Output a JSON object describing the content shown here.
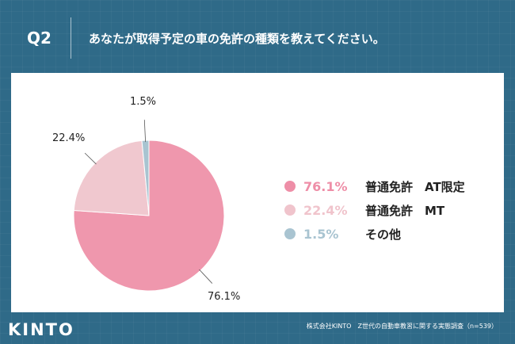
{
  "header": {
    "q_label": "Q2",
    "question": "あなたが取得予定の車の免許の種類を教えてください。"
  },
  "chart_data": {
    "type": "pie",
    "title": "",
    "slices": [
      {
        "label": "普通免許 AT限定",
        "value": 76.1,
        "pct_label": "76.1%",
        "name_line": "普通免許　AT限定",
        "color": "#ef97ad",
        "legend_color": "#ee8ea7"
      },
      {
        "label": "普通免許 MT",
        "value": 22.4,
        "pct_label": "22.4%",
        "name_line": "普通免許　MT",
        "color": "#f0c8cf",
        "legend_color": "#f0c4cc"
      },
      {
        "label": "その他",
        "value": 1.5,
        "pct_label": "1.5%",
        "name_line": "その他",
        "color": "#a9c4d1",
        "legend_color": "#a9c4d1"
      }
    ],
    "start_angle_deg": 0,
    "direction": "clockwise",
    "legend_position": "right"
  },
  "footer": {
    "logo": "KINTO",
    "source": "株式会社KINTO　Z世代の自動車教習に関する実態調査（n=539）"
  }
}
